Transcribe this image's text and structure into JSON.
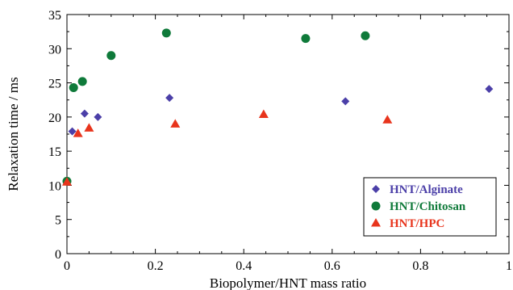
{
  "chart_data": {
    "type": "scatter",
    "xlabel": "Biopolymer/HNT mass ratio",
    "ylabel": "Relaxation time / ms",
    "xlim": [
      0,
      1
    ],
    "ylim": [
      0,
      35
    ],
    "xticks": [
      0,
      0.2,
      0.4,
      0.6,
      0.8,
      1
    ],
    "xtick_labels": [
      "0",
      "0.2",
      "0.4",
      "0.6",
      "0.8",
      "1"
    ],
    "yticks": [
      0,
      5,
      10,
      15,
      20,
      25,
      30,
      35
    ],
    "ytick_labels": [
      "0",
      "5",
      "10",
      "15",
      "20",
      "25",
      "30",
      "35"
    ],
    "grid": false,
    "legend_position": "bottom-right",
    "series": [
      {
        "name": "HNT/Alginate",
        "marker": "diamond",
        "color": "#4b3fa8",
        "x": [
          0.0,
          0.012,
          0.04,
          0.07,
          0.232,
          0.63,
          0.955
        ],
        "y": [
          10.6,
          17.9,
          20.5,
          20.0,
          22.8,
          22.3,
          24.1
        ]
      },
      {
        "name": "HNT/Chitosan",
        "marker": "circle",
        "color": "#0f7a3a",
        "x": [
          0.0,
          0.015,
          0.035,
          0.1,
          0.225,
          0.54,
          0.675
        ],
        "y": [
          10.6,
          24.3,
          25.2,
          29.0,
          32.3,
          31.5,
          31.9
        ]
      },
      {
        "name": "HNT/HPC",
        "marker": "triangle",
        "color": "#e8341c",
        "x": [
          0.0,
          0.025,
          0.05,
          0.245,
          0.445,
          0.725
        ],
        "y": [
          10.5,
          17.6,
          18.4,
          19.0,
          20.4,
          19.6
        ]
      }
    ]
  }
}
